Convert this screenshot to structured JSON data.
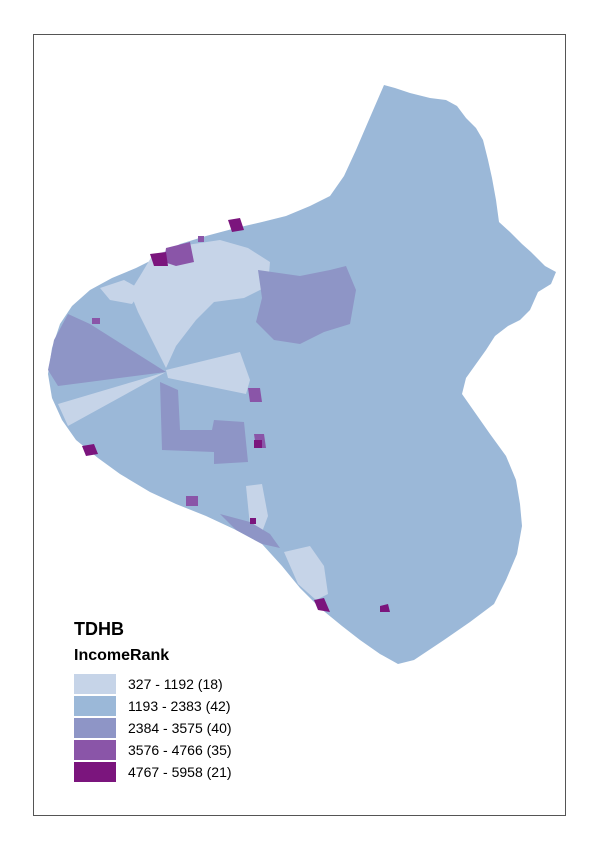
{
  "legend": {
    "title": "TDHB",
    "field": "IncomeRank",
    "classes": [
      {
        "label": "327 - 1192 (18)",
        "color": "#c6d4e8"
      },
      {
        "label": "1193 - 2383 (42)",
        "color": "#9bb8d8"
      },
      {
        "label": "2384 - 3575 (40)",
        "color": "#8e95c6"
      },
      {
        "label": "3576 - 4766 (35)",
        "color": "#8a55a8"
      },
      {
        "label": "4767 - 5958 (21)",
        "color": "#7b157d"
      }
    ]
  }
}
